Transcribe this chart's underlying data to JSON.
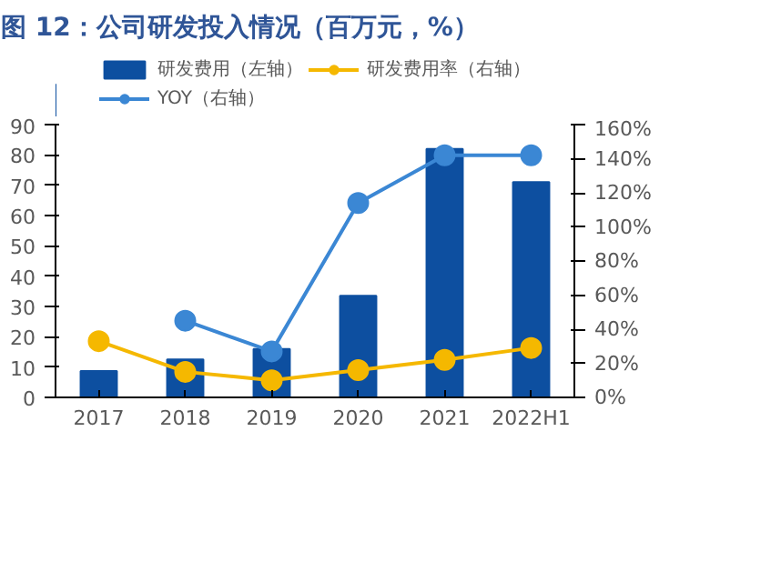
{
  "chart_data": {
    "type": "bar",
    "title": "图 12：公司研发投入情况（百万元，%）",
    "categories": [
      "2017",
      "2018",
      "2019",
      "2020",
      "2021",
      "2022H1"
    ],
    "series": [
      {
        "name": "研发费用（左轴）",
        "color": "#0d4fa0",
        "values": [
          8.7,
          12.5,
          16,
          33.5,
          82,
          71
        ]
      },
      {
        "name": "YOY（右轴）",
        "type": "line",
        "axis": "y2",
        "color": "#3b87d4",
        "values": [
          null,
          45,
          27,
          114,
          142,
          142
        ]
      },
      {
        "name": "研发费用率（右轴）",
        "type": "line",
        "axis": "y2",
        "color": "#f5b800",
        "values": [
          33,
          15,
          10,
          16,
          22,
          29
        ]
      }
    ],
    "ylim": [
      0,
      90
    ],
    "yticks": [
      0,
      10,
      20,
      30,
      40,
      50,
      60,
      70,
      80,
      90
    ],
    "y2lim": [
      0,
      160
    ],
    "y2ticks": [
      {
        "value": 0,
        "label": "0%"
      },
      {
        "value": 20,
        "label": "20%"
      },
      {
        "value": 40,
        "label": "40%"
      },
      {
        "value": 60,
        "label": "60%"
      },
      {
        "value": 80,
        "label": "80%"
      },
      {
        "value": 100,
        "label": "100%"
      },
      {
        "value": 120,
        "label": "120%"
      },
      {
        "value": 140,
        "label": "140%"
      },
      {
        "value": 160,
        "label": "160%"
      }
    ],
    "legend": "top",
    "marker": "circle"
  }
}
